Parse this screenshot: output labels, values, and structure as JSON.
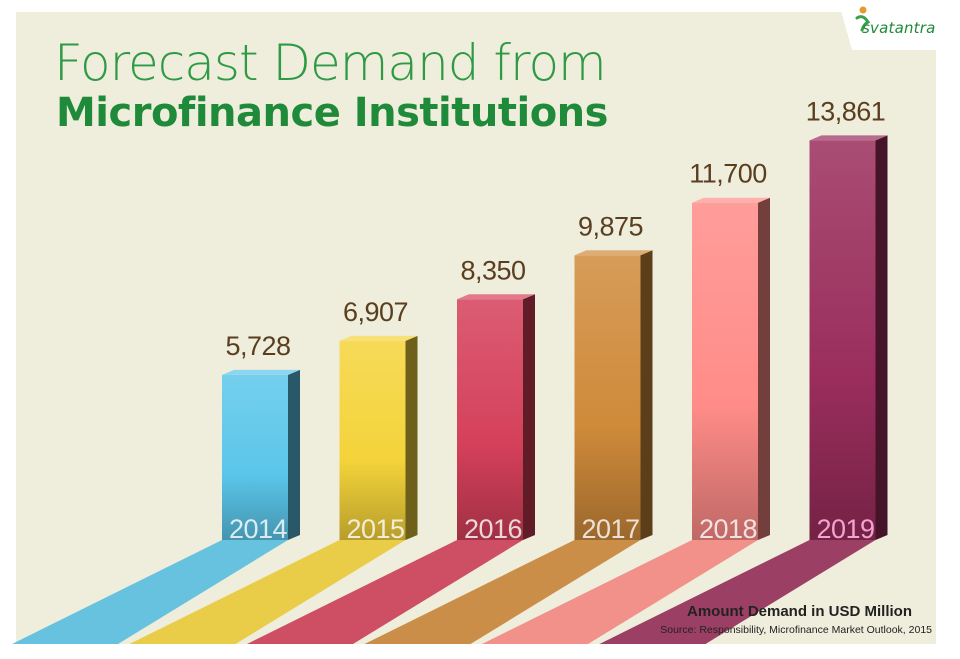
{
  "title_line1": "Forecast Demand from",
  "title_line2": "Microfinance Institutions",
  "brand": "svatantra",
  "unit_label": "Amount Demand in USD Million",
  "source": "Source: Responsibility, Microfinance Market Outlook, 2015",
  "colors": {
    "background": "#efeddb",
    "title_accent": "#1f8a3a",
    "value_label": "#5a3e20",
    "bars": [
      "#5bc6ea",
      "#f4d33a",
      "#d5405a",
      "#cf8a3a",
      "#ff8c88",
      "#9a2d5c"
    ]
  },
  "chart_data": {
    "type": "bar",
    "categories": [
      "2014",
      "2015",
      "2016",
      "2017",
      "2018",
      "2019"
    ],
    "values": [
      5728,
      6907,
      8350,
      9875,
      11700,
      13861
    ],
    "value_labels": [
      "5,728",
      "6,907",
      "8,350",
      "9,875",
      "11,700",
      "13,861"
    ],
    "title": "Forecast Demand from Microfinance Institutions",
    "ylabel": "Amount Demand in USD Million",
    "grid": false,
    "style": "3d-bars-with-shadows"
  }
}
